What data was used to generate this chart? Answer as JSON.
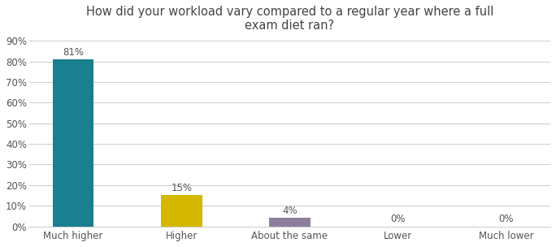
{
  "title": "How did your workload vary compared to a regular year where a full\nexam diet ran?",
  "categories": [
    "Much higher",
    "Higher",
    "About the same",
    "Lower",
    "Much lower"
  ],
  "values": [
    81,
    15,
    4,
    0,
    0
  ],
  "bar_colors": [
    "#1a7f8e",
    "#d4b800",
    "#8e7d9e",
    "#c8c8c8",
    "#c8c8c8"
  ],
  "ylim": [
    0,
    90
  ],
  "yticks": [
    0,
    10,
    20,
    30,
    40,
    50,
    60,
    70,
    80,
    90
  ],
  "ytick_labels": [
    "0%",
    "10%",
    "20%",
    "30%",
    "40%",
    "50%",
    "60%",
    "70%",
    "80%",
    "90%"
  ],
  "label_fontsize": 8.5,
  "title_fontsize": 10.5,
  "bar_width": 0.38,
  "grid_color": "#cccccc",
  "background_color": "#ffffff",
  "text_color": "#555555",
  "title_color": "#444444",
  "value_labels": [
    "81%",
    "15%",
    "4%",
    "0%",
    "0%"
  ],
  "value_offsets": [
    1.0,
    1.0,
    1.0,
    1.0,
    1.0
  ]
}
